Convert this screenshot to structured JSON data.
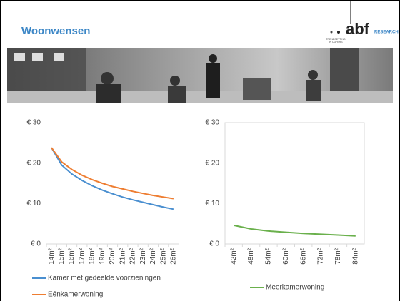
{
  "header": {
    "title": "Woonwensen",
    "logo": "abf",
    "logo_tag": "RESEARCH",
    "tagline_1": "TRENDSETTING",
    "tagline_2": "IN CIJFERS"
  },
  "chart_data": [
    {
      "type": "line",
      "categories": [
        "14m²",
        "15m²",
        "16m²",
        "17m²",
        "18m²",
        "19m²",
        "20m²",
        "21m²",
        "22m²",
        "23m²",
        "24m²",
        "25m²",
        "26m²"
      ],
      "series": [
        {
          "name": "Kamer met gedeelde voorzieningen",
          "color": "#4a8fd0",
          "values": [
            23.8,
            19.5,
            17.3,
            15.7,
            14.4,
            13.3,
            12.4,
            11.6,
            10.9,
            10.3,
            9.7,
            9.1,
            8.6
          ]
        },
        {
          "name": "Eénkamerwoning",
          "color": "#ee7d31",
          "values": [
            23.8,
            20.3,
            18.4,
            17.0,
            15.9,
            15.0,
            14.2,
            13.6,
            13.0,
            12.5,
            12.0,
            11.6,
            11.2
          ]
        }
      ],
      "ylim": [
        0,
        30
      ],
      "yticks": [
        {
          "value": 0,
          "label": "€ 0"
        },
        {
          "value": 10,
          "label": "€ 10"
        },
        {
          "value": 20,
          "label": "€ 20"
        },
        {
          "value": 30,
          "label": "€ 30"
        }
      ],
      "plot_border": false
    },
    {
      "type": "line",
      "categories": [
        "42m²",
        "48m²",
        "54m²",
        "60m²",
        "66m²",
        "72m²",
        "78m²",
        "84m²"
      ],
      "series": [
        {
          "name": "Meerkamerwoning",
          "color": "#6ab04c",
          "values": [
            4.6,
            3.7,
            3.2,
            2.9,
            2.6,
            2.4,
            2.2,
            2.0
          ]
        }
      ],
      "ylim": [
        0,
        30
      ],
      "yticks": [
        {
          "value": 0,
          "label": "€ 0"
        },
        {
          "value": 10,
          "label": "€ 10"
        },
        {
          "value": 20,
          "label": "€ 20"
        },
        {
          "value": 30,
          "label": "€ 30"
        }
      ],
      "plot_border": true
    }
  ]
}
